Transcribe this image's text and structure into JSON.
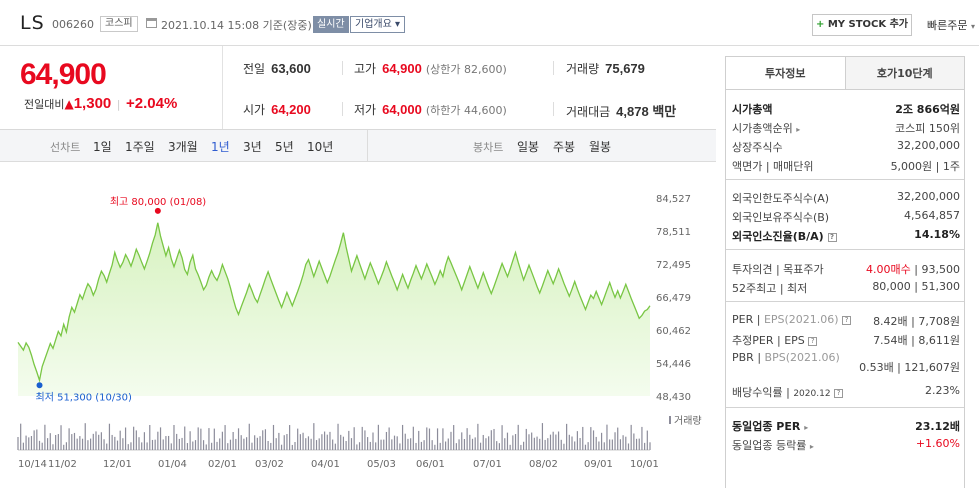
{
  "header": {
    "name": "LS",
    "code": "006260",
    "market": "코스피",
    "datetime": "2021.10.14 15:08 기준(장중)",
    "realtime": "실시간",
    "overview": "기업개요",
    "overview_caret": "▾",
    "mystock_plus": "+",
    "mystock": "MY STOCK 추가",
    "quick_order": "빠른주문",
    "quick_caret": "▾"
  },
  "price": {
    "current": "64,900",
    "change_label": "전일대비",
    "change_arrow": "▲",
    "change": "1,300",
    "rate": "+2.04%",
    "sep": "|"
  },
  "stats": {
    "prev_label": "전일",
    "prev": "63,600",
    "high_label": "고가",
    "high": "64,900",
    "upper": "(상한가 82,600)",
    "volume_label": "거래량",
    "volume": "75,679",
    "open_label": "시가",
    "open": "64,200",
    "low_label": "저가",
    "low": "64,000",
    "lower": "(하한가 44,600)",
    "value_label": "거래대금",
    "value": "4,878 백만"
  },
  "tabs": {
    "line_label": "선차트",
    "line": [
      "1일",
      "1주일",
      "3개월",
      "1년",
      "3년",
      "5년",
      "10년"
    ],
    "active": "1년",
    "candle_label": "봉차트",
    "candle": [
      "일봉",
      "주봉",
      "월봉"
    ]
  },
  "chart_data": {
    "type": "area",
    "y_ticks": [
      "84,527",
      "78,511",
      "72,495",
      "66,479",
      "60,462",
      "54,446",
      "48,430"
    ],
    "ylim": [
      48430,
      84527
    ],
    "x_ticks": [
      "10/14",
      "11/02",
      "12/01",
      "01/04",
      "02/01",
      "03/02",
      "04/01",
      "05/03",
      "06/01",
      "07/01",
      "08/02",
      "09/01",
      "10/01"
    ],
    "high_annotation": "최고 80,000 (01/08)",
    "low_annotation": "최저 51,300 (10/30)",
    "volume_label": "거래량",
    "prices": [
      58200,
      57500,
      56800,
      58100,
      57300,
      55900,
      54200,
      52800,
      51300,
      53800,
      55200,
      56600,
      58000,
      57100,
      58700,
      60200,
      59400,
      61500,
      60100,
      62800,
      64600,
      63700,
      65300,
      66900,
      66100,
      67600,
      68900,
      68200,
      66800,
      67900,
      69800,
      71200,
      70400,
      69200,
      70800,
      72300,
      74600,
      73100,
      71900,
      72800,
      74200,
      73300,
      72100,
      73500,
      75200,
      74100,
      72800,
      71600,
      73000,
      74500,
      76300,
      77800,
      80000,
      77600,
      75800,
      74000,
      75500,
      73400,
      72000,
      73500,
      75000,
      73600,
      71500,
      70600,
      72800,
      74100,
      71600,
      70500,
      69200,
      67800,
      68600,
      70100,
      71300,
      70200,
      69500,
      70700,
      72400,
      71100,
      69800,
      68100,
      66200,
      64500,
      63300,
      64700,
      66000,
      67300,
      68800,
      67600,
      66300,
      65500,
      66900,
      68300,
      69800,
      71100,
      69700,
      68400,
      67100,
      65800,
      64600,
      65900,
      67300,
      66100,
      64900,
      66200,
      67500,
      68900,
      70500,
      72400,
      73300,
      71800,
      70200,
      71600,
      73000,
      71700,
      70400,
      69100,
      70300,
      71800,
      73200,
      74600,
      76300,
      78200,
      75600,
      73400,
      71200,
      72600,
      74000,
      72600,
      71200,
      69800,
      71300,
      72700,
      71500,
      70200,
      68900,
      70100,
      71400,
      72900,
      71600,
      70300,
      69100,
      67800,
      69200,
      70600,
      69300,
      68100,
      69500,
      70800,
      72200,
      71000,
      69800,
      71100,
      72500,
      71300,
      70100,
      68800,
      69900,
      71300,
      70200,
      72300,
      73800,
      72700,
      71500,
      70300,
      69100,
      67800,
      69200,
      70600,
      72000,
      70700,
      69400,
      68100,
      69500,
      70900,
      69600,
      68300,
      67100,
      68400,
      69800,
      71200,
      72600,
      71400,
      70200,
      71600,
      73100,
      74600,
      72800,
      71200,
      69600,
      70900,
      72300,
      71000,
      69700,
      68400,
      67200,
      68500,
      69900,
      71300,
      70100,
      68900,
      70200,
      71600,
      70300,
      69000,
      67800,
      66600,
      67900,
      69300,
      67900,
      66600,
      65400,
      64200,
      65500,
      66800,
      66200,
      67500,
      66300,
      65100,
      66400,
      67800,
      69100,
      67700,
      66400,
      67600,
      66300,
      67500,
      68800,
      67500,
      66200,
      65000,
      63800,
      62600,
      63100,
      63900,
      64200,
      64900
    ]
  },
  "panel": {
    "tab_invest": "투자정보",
    "tab_order": "호가10단계",
    "mktcap_label": "시가총액",
    "mktcap": "2조 866억원",
    "rank_label": "시가총액순위",
    "rank_caret": "▸",
    "rank": "코스피 150위",
    "shares_label": "상장주식수",
    "shares": "32,200,000",
    "par_label": "액면가 | 매매단위",
    "par": "5,000원 | 1주",
    "fa_label": "외국인한도주식수(A)",
    "fa": "32,200,000",
    "fb_label": "외국인보유주식수(B)",
    "fb": "4,564,857",
    "fr_label": "외국인소진율(B/A)",
    "fr": "14.18%",
    "op_label": "투자의견 | 목표주가",
    "op_buy": "4.00매수",
    "op_sep": "|",
    "op_target": "93,500",
    "w52_label": "52주최고 | 최저",
    "w52": "80,000 | 51,300",
    "per_label": "PER",
    "per_sep": "|",
    "eps_label": "EPS(2021.06)",
    "per": "8.42배 | 7,708원",
    "eper_label": "추정PER",
    "eper_sep": "|",
    "eeps_label": "EPS",
    "eper": "7.54배 | 8,611원",
    "pbr_label": "PBR",
    "pbr_sep": "|",
    "bps_label": "BPS(2021.06)",
    "pbr": "0.53배 | 121,607원",
    "div_label": "배당수익률",
    "div_sep": "|",
    "div_date": "2020.12",
    "div": "2.23%",
    "ind_per_label": "동일업종 PER",
    "ind_per_caret": "▸",
    "ind_per": "23.12배",
    "ind_rate_label": "동일업종 등락률",
    "ind_rate_caret": "▸",
    "ind_rate": "+1.60%",
    "info_glyph": "?"
  },
  "colors": {
    "up": "#e8091f",
    "line": "#79c644",
    "area_top": "#d7f2c0",
    "area_bottom": "#f4fcee",
    "active_tab": "#2f5cd0"
  }
}
